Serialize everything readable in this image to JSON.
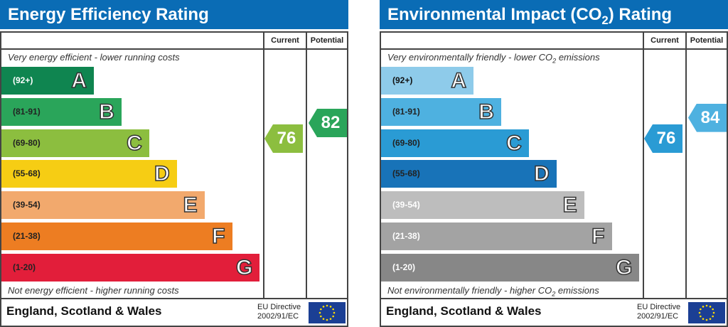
{
  "chart_data": [
    {
      "type": "bar",
      "title": "Energy Efficiency Rating",
      "column_headers": [
        "Current",
        "Potential"
      ],
      "top_note": "Very energy efficient - lower running costs",
      "bottom_note": "Not energy efficient - higher running costs",
      "bands": [
        {
          "letter": "A",
          "range": "(92+)",
          "color": "#0f8550",
          "text_color": "#ffffff"
        },
        {
          "letter": "B",
          "range": "(81-91)",
          "color": "#2aa55a",
          "text_color": "#222222"
        },
        {
          "letter": "C",
          "range": "(69-80)",
          "color": "#8cbe3f",
          "text_color": "#222222"
        },
        {
          "letter": "D",
          "range": "(55-68)",
          "color": "#f6cd14",
          "text_color": "#222222"
        },
        {
          "letter": "E",
          "range": "(39-54)",
          "color": "#f2a96d",
          "text_color": "#222222"
        },
        {
          "letter": "F",
          "range": "(21-38)",
          "color": "#ed7d22",
          "text_color": "#222222"
        },
        {
          "letter": "G",
          "range": "(1-20)",
          "color": "#e21e3a",
          "text_color": "#222222"
        }
      ],
      "current": {
        "value": 76,
        "color": "#8cbe3f"
      },
      "potential": {
        "value": 82,
        "color": "#2aa55a"
      },
      "footer": "England, Scotland & Wales",
      "directive": [
        "EU Directive",
        "2002/91/EC"
      ]
    },
    {
      "type": "bar",
      "title": "Environmental Impact (CO2) Rating",
      "column_headers": [
        "Current",
        "Potential"
      ],
      "top_note": "Very environmentally friendly - lower CO2 emissions",
      "bottom_note": "Not environmentally friendly - higher CO2 emissions",
      "bands": [
        {
          "letter": "A",
          "range": "(92+)",
          "color": "#8ecbea",
          "text_color": "#111111"
        },
        {
          "letter": "B",
          "range": "(81-91)",
          "color": "#4eb1e0",
          "text_color": "#222222"
        },
        {
          "letter": "C",
          "range": "(69-80)",
          "color": "#2a9bd4",
          "text_color": "#222222"
        },
        {
          "letter": "D",
          "range": "(55-68)",
          "color": "#1873b8",
          "text_color": "#222222"
        },
        {
          "letter": "E",
          "range": "(39-54)",
          "color": "#bdbdbd",
          "text_color": "#ffffff"
        },
        {
          "letter": "F",
          "range": "(21-38)",
          "color": "#a3a3a3",
          "text_color": "#ffffff"
        },
        {
          "letter": "G",
          "range": "(1-20)",
          "color": "#878787",
          "text_color": "#ffffff"
        }
      ],
      "current": {
        "value": 76,
        "color": "#2a9bd4"
      },
      "potential": {
        "value": 84,
        "color": "#4eb1e0"
      },
      "footer": "England, Scotland & Wales",
      "directive": [
        "EU Directive",
        "2002/91/EC"
      ]
    }
  ]
}
